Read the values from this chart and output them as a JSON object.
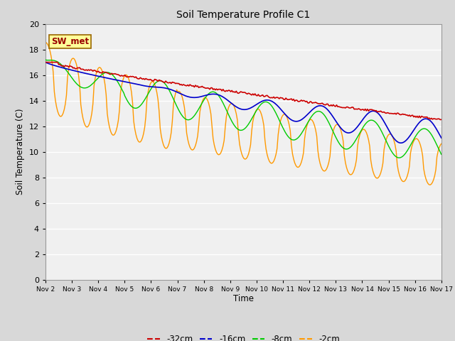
{
  "title": "Soil Temperature Profile C1",
  "xlabel": "Time",
  "ylabel": "Soil Temperature (C)",
  "ylim": [
    0,
    20
  ],
  "yticks": [
    0,
    2,
    4,
    6,
    8,
    10,
    12,
    14,
    16,
    18,
    20
  ],
  "x_labels": [
    "Nov 2",
    "Nov 3",
    "Nov 4",
    "Nov 5",
    "Nov 6",
    "Nov 7",
    "Nov 8",
    "Nov 9",
    "Nov 10",
    "Nov 11",
    "Nov 12",
    "Nov 13",
    "Nov 14",
    "Nov 15",
    "Nov 16",
    "Nov 17"
  ],
  "outer_bg": "#d8d8d8",
  "plot_bg": "#f0f0f0",
  "grid_color": "#ffffff",
  "annotation_label": "SW_met",
  "annotation_bg": "#ffff99",
  "annotation_border": "#996600",
  "annotation_text_color": "#990000",
  "colors": {
    "-32cm": "#cc0000",
    "-16cm": "#0000cc",
    "-8cm": "#00cc00",
    "-2cm": "#ff9900"
  },
  "days": 15,
  "legend_items": [
    {
      "label": "-32cm",
      "color": "#cc0000"
    },
    {
      "label": "-16cm",
      "color": "#0000cc"
    },
    {
      "label": "-8cm",
      "color": "#00cc00"
    },
    {
      "label": "-2cm",
      "color": "#ff9900"
    }
  ]
}
